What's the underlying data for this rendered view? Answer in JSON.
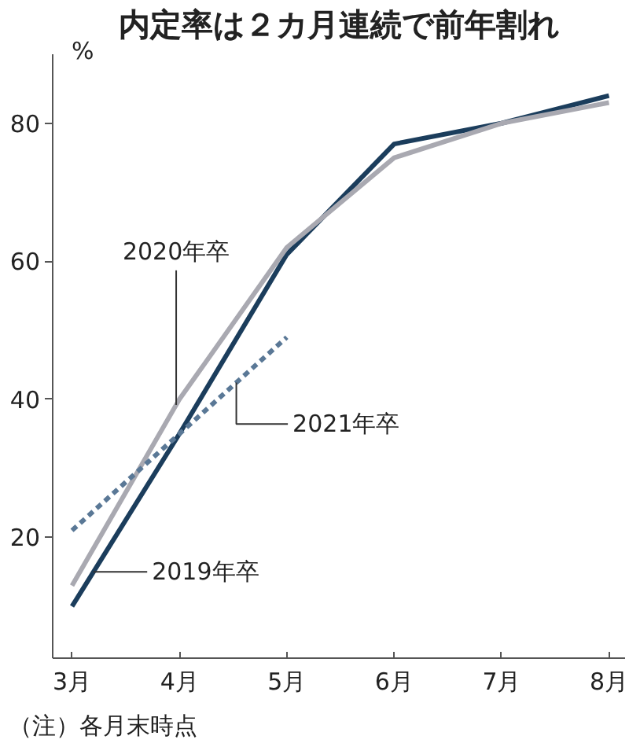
{
  "chart_data": {
    "type": "line",
    "title": "内定率は２カ月連続で前年割れ",
    "ylabel": "%",
    "categories": [
      "3月",
      "4月",
      "5月",
      "6月",
      "7月",
      "8月"
    ],
    "series": [
      {
        "name": "2019年卒",
        "color": "#1b3d5c",
        "values": [
          10,
          35,
          61,
          77,
          80,
          84
        ]
      },
      {
        "name": "2020年卒",
        "color": "#a9a9b1",
        "values": [
          13,
          40,
          62,
          75,
          80,
          83
        ]
      },
      {
        "name": "2021年卒",
        "color": "#5a7896",
        "values": [
          21,
          35,
          49,
          null,
          null,
          null
        ],
        "line_style": "dashed"
      }
    ],
    "ylim": [
      2.5,
      90
    ],
    "yticks": [
      20,
      40,
      60,
      80
    ],
    "line_style": "solid",
    "annotations": [
      "（注）各月末時点"
    ]
  }
}
